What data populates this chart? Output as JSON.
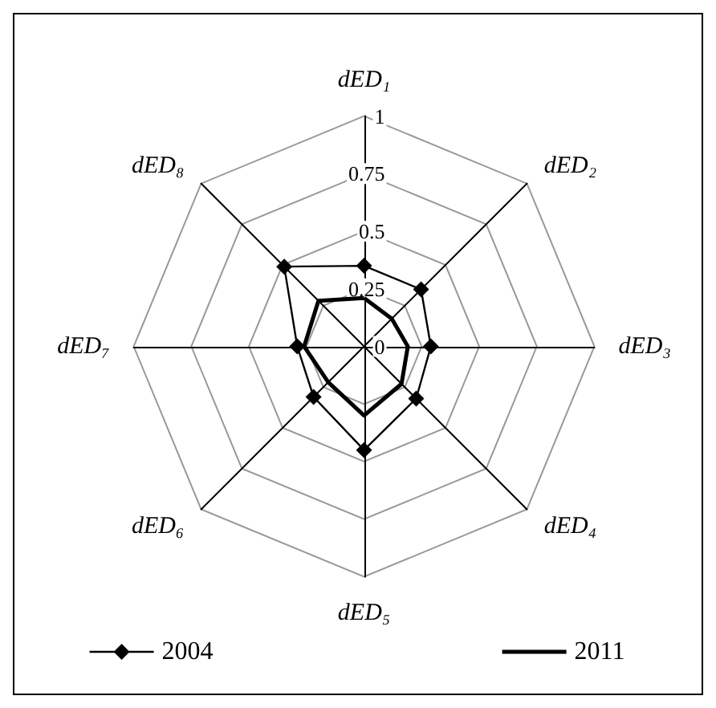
{
  "chart_data": {
    "type": "radar",
    "categories": [
      "dED₁",
      "dED₂",
      "dED₃",
      "dED₄",
      "dED₅",
      "dED₆",
      "dED₇",
      "dED₈"
    ],
    "ylim": [
      0,
      1
    ],
    "yticks": [
      0,
      0.25,
      0.5,
      0.75,
      1
    ],
    "legend": "bottom",
    "grid": true,
    "series": [
      {
        "name": "2004",
        "color": "#000000",
        "marker": "diamond",
        "values": [
          0.35,
          0.35,
          0.29,
          0.32,
          0.45,
          0.31,
          0.29,
          0.49
        ]
      },
      {
        "name": "2011",
        "color": "#000000",
        "marker": "none",
        "values": [
          0.21,
          0.17,
          0.19,
          0.23,
          0.3,
          0.22,
          0.26,
          0.28
        ]
      }
    ]
  }
}
